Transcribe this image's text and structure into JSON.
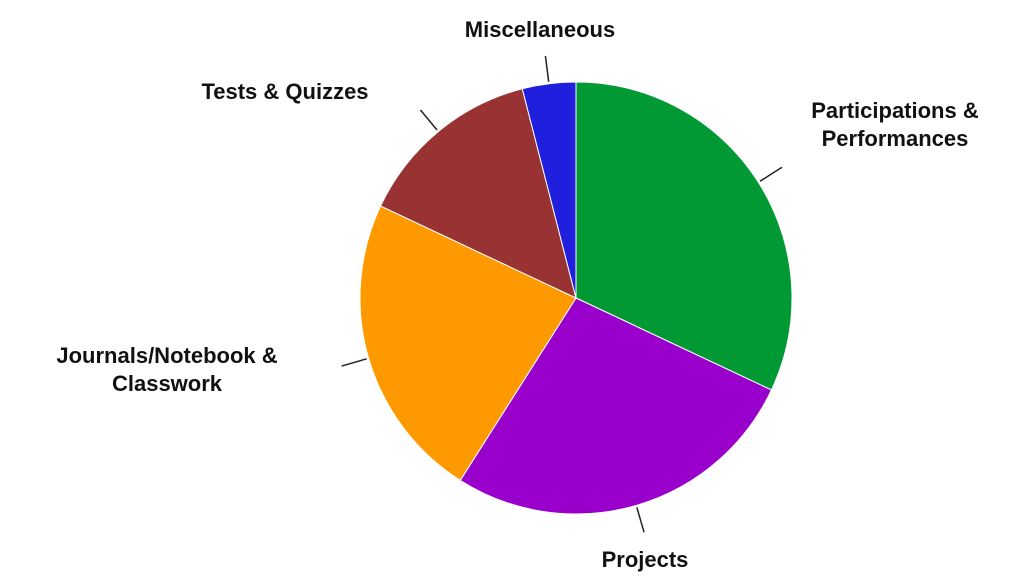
{
  "chart_data": {
    "type": "pie",
    "categories": [
      "Participations & Performances",
      "Projects",
      "Journals/Notebook & Classwork",
      "Tests & Quizzes",
      "Miscellaneous"
    ],
    "values": [
      32,
      27,
      23,
      14,
      4
    ],
    "colors": [
      "#009933",
      "#9900cc",
      "#ff9900",
      "#993333",
      "#1f1fdd"
    ]
  }
}
